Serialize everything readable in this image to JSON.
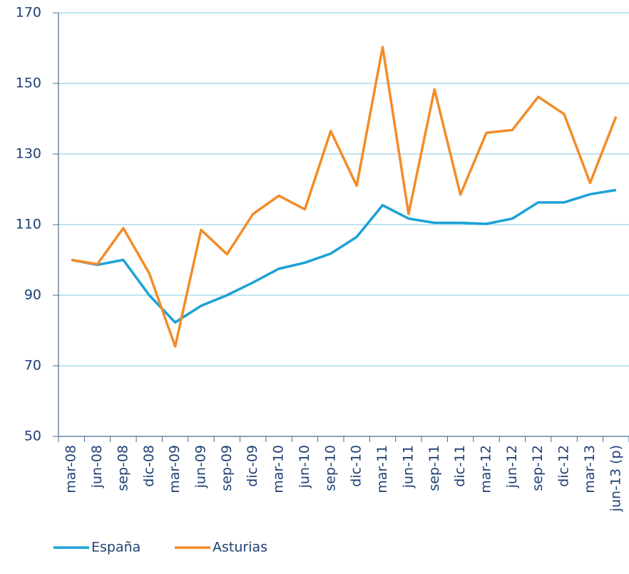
{
  "chart_data": {
    "type": "line",
    "categories": [
      "mar-08",
      "jun-08",
      "sep-08",
      "dic-08",
      "mar-09",
      "jun-09",
      "sep-09",
      "dic-09",
      "mar-10",
      "jun-10",
      "sep-10",
      "dic-10",
      "mar-11",
      "jun-11",
      "sep-11",
      "dic-11",
      "mar-12",
      "jun-12",
      "sep-12",
      "dic-12",
      "mar-13",
      "jun-13 (p)"
    ],
    "series": [
      {
        "name": "España",
        "color": "#1ba1d6",
        "values": [
          100,
          98.6,
          100,
          90,
          82.3,
          87,
          90,
          93.6,
          97.5,
          99.2,
          101.8,
          106.5,
          115.5,
          111.7,
          110.5,
          110.5,
          110.2,
          111.7,
          116.3,
          116.3,
          118.6,
          119.8
        ]
      },
      {
        "name": "Asturias",
        "color": "#f28c28",
        "values": [
          100,
          98.8,
          109,
          96.2,
          75.5,
          108.5,
          101.6,
          113,
          118.2,
          114.3,
          136.5,
          121,
          160.3,
          113,
          148.3,
          118.5,
          136,
          136.8,
          146.2,
          141.3,
          121.8,
          140.6
        ]
      }
    ],
    "ylim": [
      50,
      170
    ],
    "yticks": [
      50,
      70,
      90,
      110,
      130,
      150,
      170
    ],
    "grid": true,
    "legend": "bottom"
  }
}
